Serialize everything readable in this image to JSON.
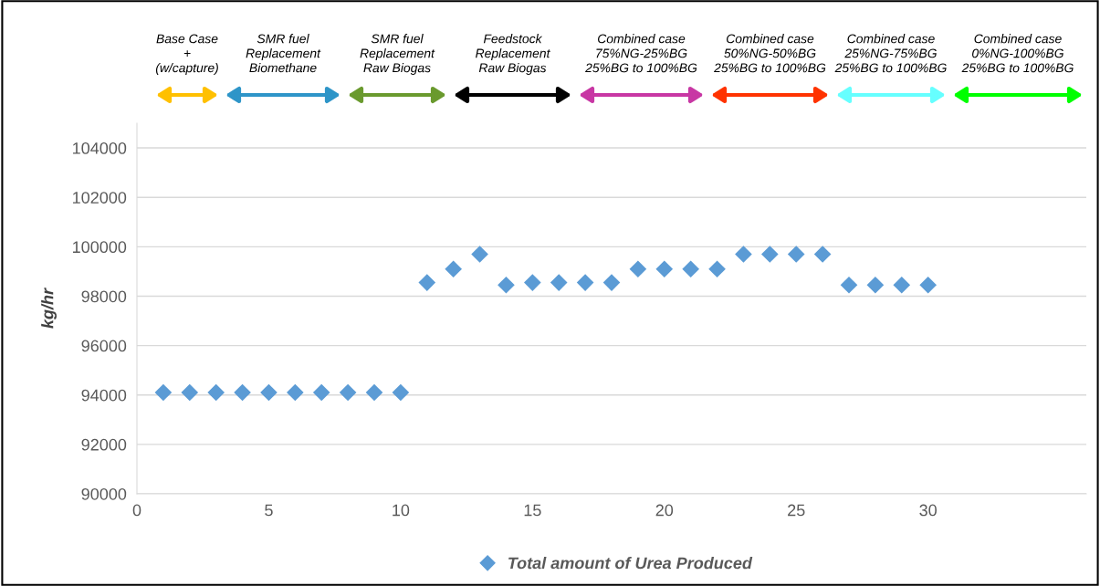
{
  "chart_data": {
    "type": "scatter",
    "ylabel": "kg/hr",
    "x": [
      1,
      2,
      3,
      4,
      5,
      6,
      7,
      8,
      9,
      10,
      11,
      12,
      13,
      14,
      15,
      16,
      17,
      18,
      19,
      20,
      21,
      22,
      23,
      24,
      25,
      26,
      27,
      28,
      29,
      30
    ],
    "series": [
      {
        "name": "Total amount of Urea Produced",
        "color": "#5b9bd5",
        "values": [
          94100,
          94100,
          94100,
          94100,
          94100,
          94100,
          94100,
          94100,
          94100,
          94100,
          98550,
          99100,
          99700,
          98450,
          98550,
          98550,
          98550,
          98550,
          99100,
          99100,
          99100,
          99100,
          99700,
          99700,
          99700,
          99700,
          98450,
          98450,
          98450,
          98450
        ]
      }
    ],
    "xlim": [
      0,
      36
    ],
    "xticks": [
      0,
      5,
      10,
      15,
      20,
      25,
      30
    ],
    "ylim": [
      90000,
      105000
    ],
    "yticks": [
      90000,
      92000,
      94000,
      96000,
      98000,
      100000,
      102000,
      104000
    ],
    "grid": "y",
    "legend": "bottom",
    "marker": "diamond",
    "annotations": [
      "Base Case\n+\n(w/capture)",
      "SMR fuel\nReplacement\nBiomethane",
      "SMR fuel\nReplacement\nRaw Biogas",
      "Feedstock\nReplacement\nRaw Biogas",
      "Combined case\n75%NG-25%BG\n25%BG to 100%BG",
      "Combined case\n50%NG-50%BG\n25%BG to 100%BG",
      "Combined case\n25%NG-75%BG\n25%BG to 100%BG",
      "Combined case\n0%NG-100%BG\n25%BG to 100%BG"
    ]
  }
}
